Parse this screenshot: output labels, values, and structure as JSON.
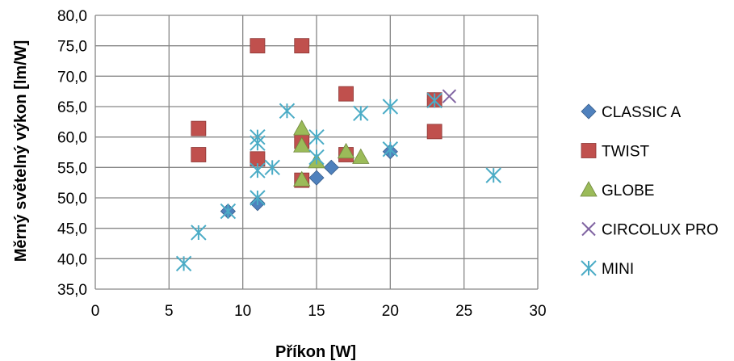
{
  "chart_data": {
    "type": "scatter",
    "title": "",
    "xlabel": "Příkon [W]",
    "ylabel": "Měrný světelný výkon [lm/W]",
    "xlim": [
      0,
      30
    ],
    "ylim": [
      35,
      80
    ],
    "x_ticks": [
      "0",
      "5",
      "10",
      "15",
      "20",
      "25",
      "30"
    ],
    "y_ticks": [
      "35,0",
      "40,0",
      "45,0",
      "50,0",
      "55,0",
      "60,0",
      "65,0",
      "70,0",
      "75,0",
      "80,0"
    ],
    "grid": true,
    "legend_position": "right",
    "series": [
      {
        "name": "CLASSIC A",
        "marker": "diamond",
        "color": "#4F81BD",
        "points": [
          [
            9,
            47.8
          ],
          [
            11,
            49.1
          ],
          [
            15,
            53.3
          ],
          [
            16,
            55.0
          ],
          [
            20,
            57.6
          ],
          [
            23,
            66.1
          ]
        ]
      },
      {
        "name": "TWIST",
        "marker": "square",
        "color": "#C0504D",
        "points": [
          [
            7,
            61.4
          ],
          [
            7,
            57.1
          ],
          [
            11,
            75.0
          ],
          [
            11,
            56.4
          ],
          [
            14,
            75.0
          ],
          [
            14,
            59.3
          ],
          [
            14,
            52.9
          ],
          [
            17,
            67.1
          ],
          [
            17,
            57.1
          ],
          [
            23,
            66.1
          ],
          [
            23,
            60.9
          ]
        ]
      },
      {
        "name": "GLOBE",
        "marker": "triangle",
        "color": "#9BBB59",
        "points": [
          [
            14,
            61.4
          ],
          [
            14,
            58.6
          ],
          [
            14,
            53.0
          ],
          [
            15,
            56.0
          ],
          [
            17,
            57.6
          ],
          [
            18,
            56.7
          ]
        ]
      },
      {
        "name": "CIRCOLUX PRO",
        "marker": "x",
        "color": "#8064A2",
        "points": [
          [
            24,
            66.7
          ]
        ]
      },
      {
        "name": "MINI",
        "marker": "star",
        "color": "#4BACC6",
        "points": [
          [
            6,
            39.2
          ],
          [
            7,
            44.3
          ],
          [
            9,
            47.8
          ],
          [
            11,
            60.0
          ],
          [
            11,
            59.0
          ],
          [
            11,
            54.5
          ],
          [
            11,
            50.0
          ],
          [
            12,
            55.0
          ],
          [
            13,
            64.3
          ],
          [
            15,
            60.0
          ],
          [
            15,
            56.7
          ],
          [
            18,
            63.9
          ],
          [
            20,
            65.0
          ],
          [
            20,
            58.0
          ],
          [
            23,
            66.0
          ],
          [
            27,
            53.7
          ]
        ]
      }
    ]
  }
}
